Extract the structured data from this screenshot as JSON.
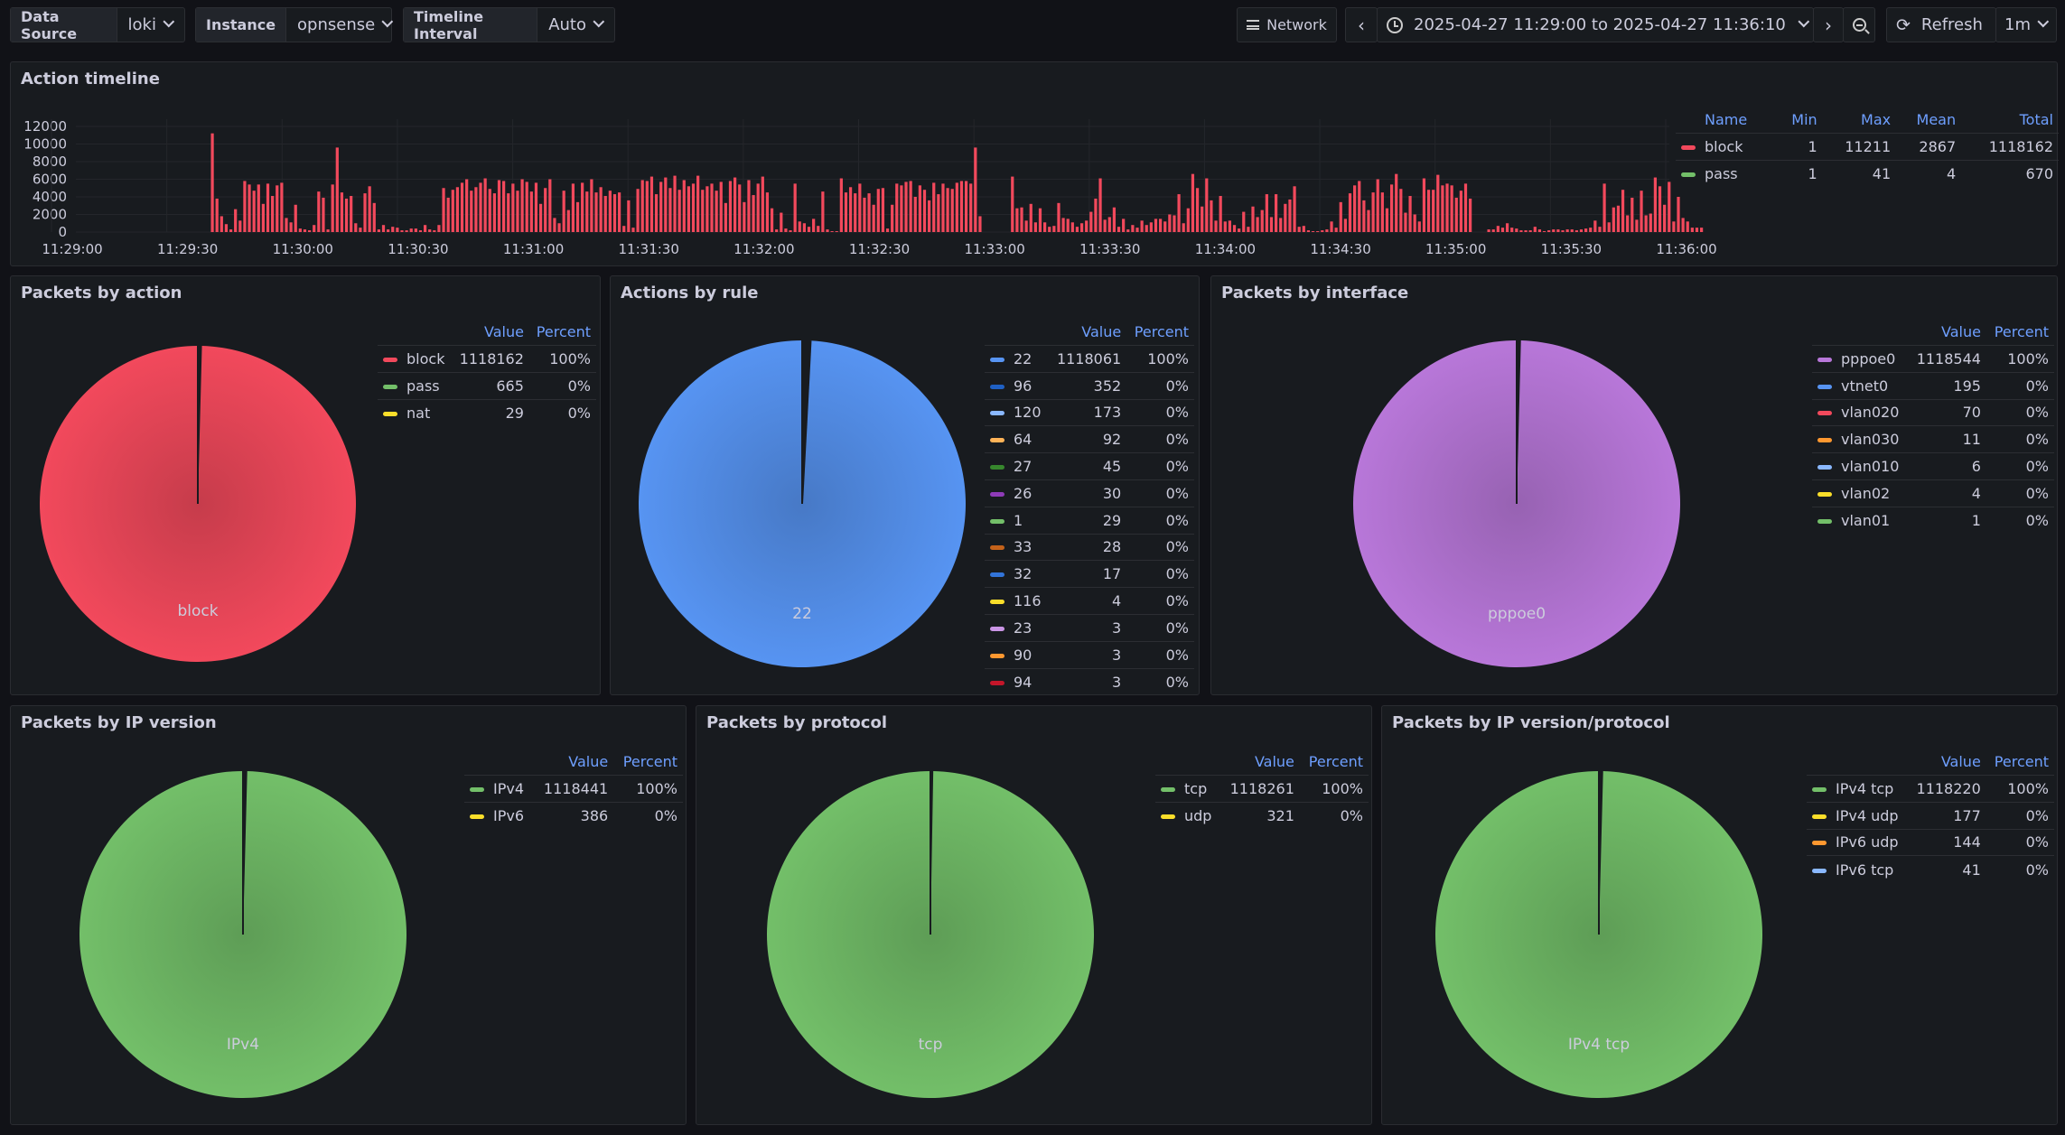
{
  "toolbar": {
    "datasource": {
      "label": "Data Source",
      "value": "loki"
    },
    "instance": {
      "label": "Instance",
      "value": "opnsense"
    },
    "interval": {
      "label": "Timeline Interval",
      "value": "Auto"
    },
    "network_label": "Network",
    "time_range": "2025-04-27 11:29:00 to 2025-04-27 11:36:10",
    "refresh_label": "Refresh",
    "refresh_interval": "1m"
  },
  "timeline": {
    "title": "Action timeline",
    "legend_headers": [
      "Name",
      "Min",
      "Max",
      "Mean",
      "Total"
    ],
    "legend_rows": [
      {
        "name": "block",
        "min": "1",
        "max": "11211",
        "mean": "2867",
        "total": "1118162",
        "color": "#f2495c"
      },
      {
        "name": "pass",
        "min": "1",
        "max": "41",
        "mean": "4",
        "total": "670",
        "color": "#73bf69"
      }
    ],
    "y_ticks": [
      "12000",
      "10000",
      "8000",
      "6000",
      "4000",
      "2000",
      "0"
    ],
    "x_ticks": [
      "11:29:00",
      "11:29:30",
      "11:30:00",
      "11:30:30",
      "11:31:00",
      "11:31:30",
      "11:32:00",
      "11:32:30",
      "11:33:00",
      "11:33:30",
      "11:34:00",
      "11:34:30",
      "11:35:00",
      "11:35:30",
      "11:36:00"
    ]
  },
  "chart_data": {
    "type": "bar",
    "title": "Action timeline",
    "ylim": [
      0,
      12000
    ],
    "x_range": [
      "11:29:00",
      "11:36:10"
    ],
    "series": [
      {
        "name": "block",
        "color": "#f2495c",
        "values": [
          0,
          0,
          0,
          0,
          0,
          0,
          0,
          0,
          0,
          0,
          0,
          0,
          0,
          0,
          0,
          0,
          0,
          0,
          0,
          0,
          0,
          0,
          0,
          0,
          0,
          0,
          0,
          0,
          0,
          11211,
          3800,
          1800,
          900,
          300,
          2600,
          1300,
          5800,
          5400,
          4700,
          5400,
          3200,
          5500,
          4100,
          5300,
          5600,
          1600,
          1100,
          3100,
          400,
          300,
          200,
          800,
          4600,
          3900,
          300,
          5400,
          9600,
          4500,
          3800,
          4100,
          1000,
          500,
          4400,
          5200,
          3300,
          300,
          800,
          300,
          600,
          500,
          200,
          200,
          400,
          400,
          200,
          800,
          300,
          200,
          800,
          5000,
          3900,
          4800,
          5100,
          5600,
          6000,
          4700,
          5100,
          5600,
          6100,
          4900,
          4400,
          5900,
          5800,
          4400,
          5500,
          4700,
          6000,
          5700,
          4600,
          5600,
          3200,
          5000,
          6000,
          1600,
          1000,
          4700,
          2500,
          5500,
          3400,
          5600,
          4600,
          6000,
          4500,
          5100,
          4100,
          4700,
          4300,
          4500,
          700,
          3600,
          500,
          4900,
          5900,
          5800,
          6300,
          4300,
          5700,
          6200,
          5000,
          6400,
          4800,
          5900,
          5200,
          5500,
          6400,
          4800,
          5200,
          5500,
          4700,
          5700,
          3300,
          5800,
          6200,
          5400,
          3400,
          5900,
          4200,
          5500,
          6300,
          4500,
          2700,
          300,
          2200,
          400,
          200,
          5500,
          1200,
          1000,
          600,
          1500,
          700,
          4600,
          300,
          100,
          100,
          6100,
          4500,
          5100,
          4400,
          5500,
          3900,
          4400,
          3100,
          4900,
          5000,
          400,
          3100,
          5500,
          5300,
          5700,
          5800,
          4000,
          5300,
          4800,
          3600,
          5600,
          4300,
          5500,
          5000,
          4900,
          5600,
          5800,
          5800,
          5500,
          9600,
          1800,
          0,
          0,
          0,
          0,
          0,
          0,
          6300,
          2700,
          2800,
          1300,
          3200,
          1100,
          2700,
          1100,
          600,
          700,
          3300,
          1600,
          1500,
          1100,
          600,
          1000,
          1300,
          2300,
          3800,
          6100,
          1400,
          1700,
          2800,
          600,
          1500,
          300,
          800,
          500,
          1300,
          800,
          1100,
          1500,
          1500,
          1200,
          2000,
          1900,
          4300,
          1000,
          2700,
          6600,
          5000,
          2900,
          6100,
          3600,
          1300,
          4100,
          1200,
          1300,
          800,
          400,
          2300,
          600,
          2900,
          1700,
          2500,
          4300,
          1700,
          4300,
          1600,
          3200,
          3700,
          5200,
          600,
          700,
          200,
          100,
          100,
          200,
          300,
          1200,
          500,
          3400,
          1500,
          4400,
          5300,
          5800,
          3600,
          2500,
          4500,
          6000,
          4500,
          2700,
          5400,
          6600,
          4900,
          2200,
          4100,
          2000,
          1200,
          6100,
          4800,
          4800,
          6500,
          5300,
          5500,
          5300,
          3900,
          4700,
          5500,
          3800,
          0,
          0,
          0,
          300,
          300,
          700,
          500,
          1000,
          500,
          400,
          200,
          200,
          200,
          600,
          300,
          100,
          200,
          300,
          300,
          200,
          300,
          300,
          200,
          300,
          400,
          500,
          1300,
          600,
          5500,
          1100,
          2800,
          3000,
          4800,
          1900,
          3900,
          1400,
          4700,
          1900,
          2100,
          6200,
          5200,
          3100,
          5700,
          1200,
          4000,
          1600,
          1200,
          500,
          500,
          500
        ]
      },
      {
        "name": "pass",
        "color": "#73bf69"
      }
    ]
  },
  "pies": {
    "action": {
      "title": "Packets by action",
      "center_label": "block",
      "headers": [
        "Value",
        "Percent"
      ],
      "rows": [
        {
          "name": "block",
          "value": "1118162",
          "percent": "100%",
          "color": "#f2495c"
        },
        {
          "name": "pass",
          "value": "665",
          "percent": "0%",
          "color": "#73bf69"
        },
        {
          "name": "nat",
          "value": "29",
          "percent": "0%",
          "color": "#fade2a"
        }
      ]
    },
    "rule": {
      "title": "Actions by rule",
      "center_label": "22",
      "headers": [
        "Value",
        "Percent"
      ],
      "rows": [
        {
          "name": "22",
          "value": "1118061",
          "percent": "100%",
          "color": "#5794f2"
        },
        {
          "name": "96",
          "value": "352",
          "percent": "0%",
          "color": "#1f60c4"
        },
        {
          "name": "120",
          "value": "173",
          "percent": "0%",
          "color": "#8ab8ff"
        },
        {
          "name": "64",
          "value": "92",
          "percent": "0%",
          "color": "#ffb357"
        },
        {
          "name": "27",
          "value": "45",
          "percent": "0%",
          "color": "#37872d"
        },
        {
          "name": "26",
          "value": "30",
          "percent": "0%",
          "color": "#8f3bb8"
        },
        {
          "name": "1",
          "value": "29",
          "percent": "0%",
          "color": "#73bf69"
        },
        {
          "name": "33",
          "value": "28",
          "percent": "0%",
          "color": "#c4621a"
        },
        {
          "name": "32",
          "value": "17",
          "percent": "0%",
          "color": "#3274d9"
        },
        {
          "name": "116",
          "value": "4",
          "percent": "0%",
          "color": "#fade2a"
        },
        {
          "name": "23",
          "value": "3",
          "percent": "0%",
          "color": "#ca95e5"
        },
        {
          "name": "90",
          "value": "3",
          "percent": "0%",
          "color": "#ff9830"
        },
        {
          "name": "94",
          "value": "3",
          "percent": "0%",
          "color": "#c4162a"
        }
      ]
    },
    "interface": {
      "title": "Packets by interface",
      "center_label": "pppoe0",
      "headers": [
        "Value",
        "Percent"
      ],
      "rows": [
        {
          "name": "pppoe0",
          "value": "1118544",
          "percent": "100%",
          "color": "#b877d9"
        },
        {
          "name": "vtnet0",
          "value": "195",
          "percent": "0%",
          "color": "#5794f2"
        },
        {
          "name": "vlan020",
          "value": "70",
          "percent": "0%",
          "color": "#f2495c"
        },
        {
          "name": "vlan030",
          "value": "11",
          "percent": "0%",
          "color": "#ff9830"
        },
        {
          "name": "vlan010",
          "value": "6",
          "percent": "0%",
          "color": "#8ab8ff"
        },
        {
          "name": "vlan02",
          "value": "4",
          "percent": "0%",
          "color": "#fade2a"
        },
        {
          "name": "vlan01",
          "value": "1",
          "percent": "0%",
          "color": "#73bf69"
        }
      ]
    },
    "ipversion": {
      "title": "Packets by IP version",
      "center_label": "IPv4",
      "headers": [
        "Value",
        "Percent"
      ],
      "rows": [
        {
          "name": "IPv4",
          "value": "1118441",
          "percent": "100%",
          "color": "#73bf69"
        },
        {
          "name": "IPv6",
          "value": "386",
          "percent": "0%",
          "color": "#fade2a"
        }
      ]
    },
    "protocol": {
      "title": "Packets by protocol",
      "center_label": "tcp",
      "headers": [
        "Value",
        "Percent"
      ],
      "rows": [
        {
          "name": "tcp",
          "value": "1118261",
          "percent": "100%",
          "color": "#73bf69"
        },
        {
          "name": "udp",
          "value": "321",
          "percent": "0%",
          "color": "#fade2a"
        }
      ]
    },
    "ipproto": {
      "title": "Packets by IP version/protocol",
      "center_label": "IPv4 tcp",
      "headers": [
        "Value",
        "Percent"
      ],
      "rows": [
        {
          "name": "IPv4 tcp",
          "value": "1118220",
          "percent": "100%",
          "color": "#73bf69"
        },
        {
          "name": "IPv4 udp",
          "value": "177",
          "percent": "0%",
          "color": "#fade2a"
        },
        {
          "name": "IPv6 udp",
          "value": "144",
          "percent": "0%",
          "color": "#ff9830"
        },
        {
          "name": "IPv6 tcp",
          "value": "41",
          "percent": "0%",
          "color": "#8ab8ff"
        }
      ]
    }
  }
}
